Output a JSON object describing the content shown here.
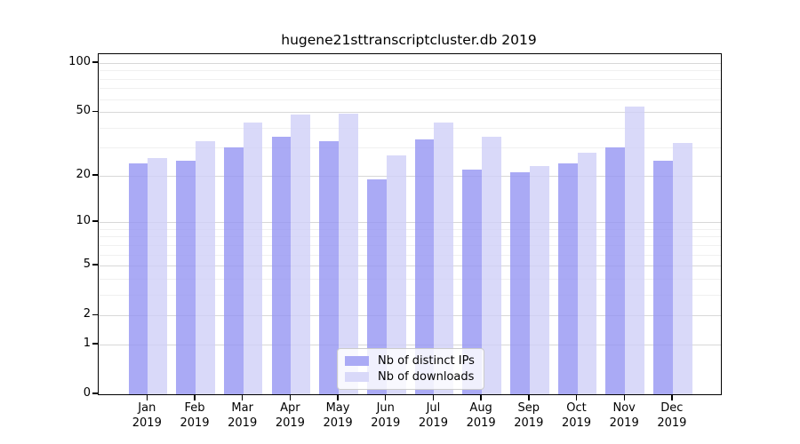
{
  "chart_data": {
    "type": "bar",
    "title": "hugene21sttranscriptcluster.db 2019",
    "categories": [
      "Jan",
      "Feb",
      "Mar",
      "Apr",
      "May",
      "Jun",
      "Jul",
      "Aug",
      "Sep",
      "Oct",
      "Nov",
      "Dec"
    ],
    "xlabel_year": "2019",
    "series": [
      {
        "name": "Nb of distinct IPs",
        "fill": "#9595f3",
        "legend_color": "#aaaaf5",
        "values": [
          24,
          25,
          30,
          35,
          33,
          19,
          34,
          22,
          21,
          24,
          30,
          25
        ]
      },
      {
        "name": "Nb of downloads",
        "fill": "#d0d0f8",
        "legend_color": "#d9d9f9",
        "values": [
          26,
          33,
          43,
          48,
          49,
          27,
          43,
          35,
          23,
          28,
          54,
          32
        ]
      }
    ],
    "yscale": "log1p",
    "ylim": [
      0,
      100
    ],
    "yticks": [
      0,
      1,
      2,
      5,
      10,
      20,
      50,
      100
    ],
    "minor_yticks": [
      3,
      4,
      6,
      7,
      8,
      9,
      30,
      40,
      60,
      70,
      80,
      90
    ],
    "grid": true,
    "legend_position": "bottom-center",
    "colors": {
      "grid_major": "#d8d8d8",
      "grid_minor": "#f0f0f0",
      "axis": "#000000",
      "background": "#ffffff"
    }
  }
}
